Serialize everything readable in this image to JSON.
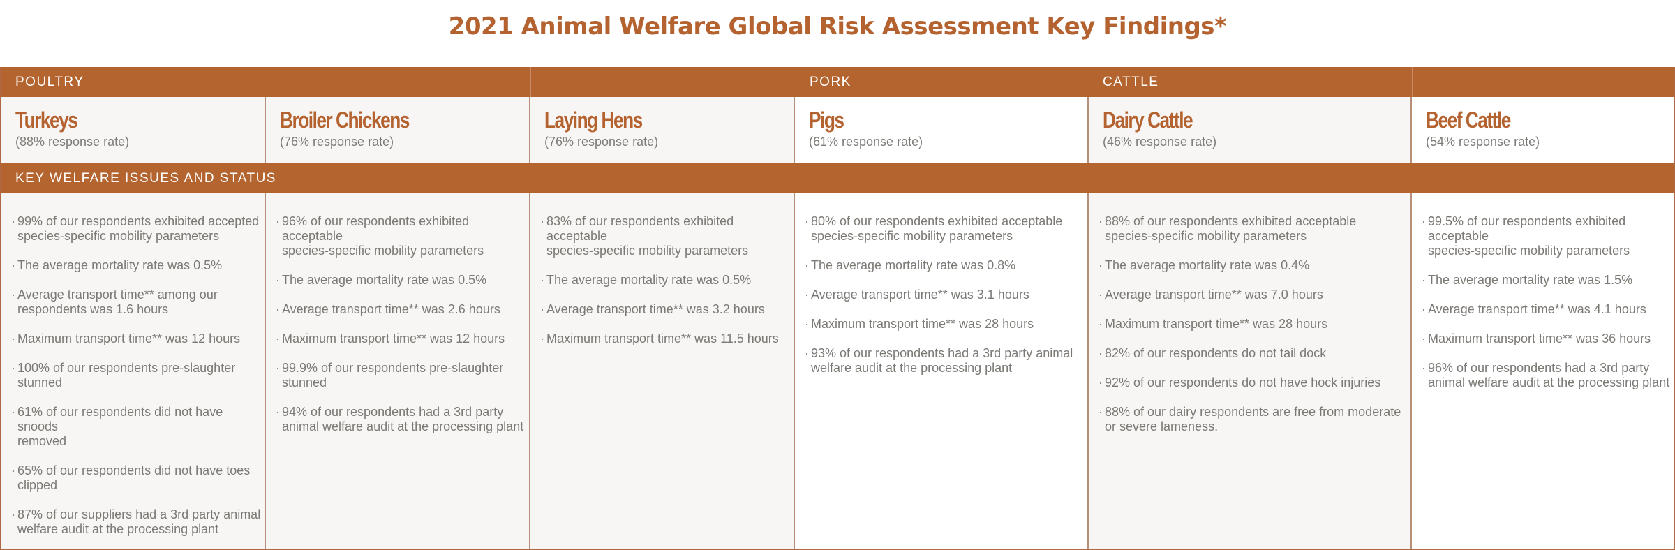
{
  "title": "2021 Animal Welfare Global Risk Assessment Key Findings*",
  "categories": {
    "poultry": "POULTRY",
    "pork": "PORK",
    "cattle": "CATTLE"
  },
  "section_label": "KEY WELFARE ISSUES AND STATUS",
  "colors": {
    "accent": "#b4642f",
    "border": "#b06844",
    "text": "#7a7773",
    "shade": "#f8f6f4"
  },
  "columns": [
    {
      "name": "Turkeys",
      "rate": "(88% response rate)",
      "items": [
        "99% of our respondents exhibited accepted\nspecies-specific mobility parameters",
        "The average mortality rate was 0.5%",
        "Average transport time** among our\nrespondents was 1.6 hours",
        "Maximum transport time** was 12 hours",
        "100% of our respondents pre-slaughter\nstunned",
        "61% of our respondents did not have snoods\nremoved",
        "65% of our respondents did not have toes\nclipped",
        "87% of our suppliers had a 3rd party animal\nwelfare audit at the processing plant"
      ]
    },
    {
      "name": "Broiler Chickens",
      "rate": "(76% response rate)",
      "items": [
        "96% of our respondents exhibited acceptable\nspecies-specific mobility parameters",
        "The average mortality rate was 0.5%",
        "Average transport time** was 2.6 hours",
        "Maximum transport time** was 12 hours",
        "99.9% of our respondents pre-slaughter\nstunned",
        "94% of our respondents had a 3rd party\nanimal welfare audit at the processing plant"
      ]
    },
    {
      "name": "Laying Hens",
      "rate": "(76% response rate)",
      "items": [
        "83% of our respondents exhibited acceptable\nspecies-specific mobility parameters",
        "The average mortality rate was 0.5%",
        "Average transport time** was 3.2 hours",
        "Maximum transport time** was 11.5 hours"
      ]
    },
    {
      "name": "Pigs",
      "rate": "(61% response rate)",
      "items": [
        "80% of our respondents exhibited acceptable\nspecies-specific mobility parameters",
        "The average mortality rate was 0.8%",
        "Average transport time** was 3.1 hours",
        "Maximum transport time** was 28 hours",
        "93% of our respondents had a 3rd party animal\nwelfare audit at the processing plant"
      ]
    },
    {
      "name": "Dairy Cattle",
      "rate": "(46% response rate)",
      "items": [
        "88% of our respondents exhibited acceptable\nspecies-specific mobility parameters",
        "The average mortality rate was 0.4%",
        "Average transport time** was 7.0 hours",
        "Maximum transport time** was 28 hours",
        "82% of our respondents do not tail dock",
        "92% of our respondents do not have hock injuries",
        "88% of our dairy respondents are free from moderate\nor severe lameness."
      ]
    },
    {
      "name": "Beef Cattle",
      "rate": "(54% response rate)",
      "items": [
        "99.5% of our respondents exhibited acceptable\nspecies-specific mobility parameters",
        "The average mortality rate was 1.5%",
        "Average transport time** was 4.1 hours",
        "Maximum transport time** was 36 hours",
        "96% of our respondents had a 3rd party\nanimal welfare audit at the processing plant"
      ]
    }
  ]
}
